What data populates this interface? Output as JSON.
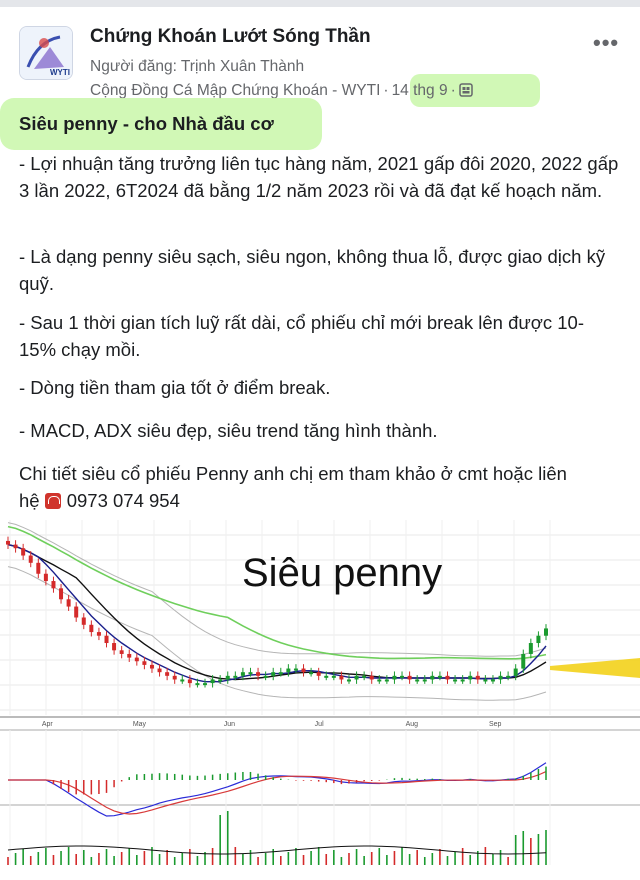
{
  "header": {
    "page_name": "Chứng Khoán Lướt Sóng Thần",
    "posted_by": "Người đăng: Trịnh Xuân Thành",
    "group": "Cộng Đồng Cá Mập Chứng Khoán - WYTI",
    "date": "14 thg 9",
    "separator": "·",
    "more_label": "•••",
    "avatar_text": "WYTI",
    "audience_icon": "group-icon"
  },
  "post": {
    "title": "Siêu penny - cho Nhà đầu cơ",
    "paragraphs": [
      "- Lợi nhuận tăng trưởng liên tục hàng năm, 2021 gấp đôi 2020, 2022 gấp 3 lần 2022, 6T2024 đã bằng 1/2 năm 2023 rồi và đã đạt kế hoạch năm.",
      "- Là dạng penny siêu sạch, siêu ngon, không thua lỗ, được giao dịch kỹ quỹ.",
      "- Sau 1 thời gian tích luỹ rất dài, cổ phiếu chỉ mới break lên được 10-15% chạy mồi.",
      "- Dòng tiền tham gia tốt ở điểm break.",
      "- MACD, ADX siêu đẹp, siêu trend tăng hình thành.",
      "Chi tiết siêu cổ phiếu Penny anh chị em tham khảo ở cmt hoặc liên"
    ],
    "contact_prefix": "hệ",
    "phone": "0973 074 954"
  },
  "chart_data": {
    "type": "candlestick",
    "title": "Siêu penny",
    "month_labels": [
      "Apr",
      "May",
      "Jun",
      "Jul",
      "Aug",
      "Sep"
    ],
    "close": [
      10.0,
      9.9,
      9.7,
      9.5,
      9.2,
      9.0,
      8.8,
      8.5,
      8.3,
      8.0,
      7.8,
      7.6,
      7.5,
      7.3,
      7.1,
      7.0,
      6.9,
      6.8,
      6.7,
      6.6,
      6.5,
      6.4,
      6.3,
      6.3,
      6.2,
      6.2,
      6.2,
      6.3,
      6.3,
      6.4,
      6.4,
      6.5,
      6.5,
      6.4,
      6.4,
      6.5,
      6.5,
      6.6,
      6.6,
      6.5,
      6.5,
      6.4,
      6.4,
      6.4,
      6.3,
      6.3,
      6.4,
      6.4,
      6.3,
      6.3,
      6.3,
      6.4,
      6.4,
      6.3,
      6.3,
      6.3,
      6.4,
      6.4,
      6.3,
      6.3,
      6.3,
      6.4,
      6.3,
      6.3,
      6.3,
      6.4,
      6.4,
      6.6,
      7.0,
      7.3,
      7.5,
      7.7
    ],
    "colors": {
      "up": "#1a9a2e",
      "down": "#d42a2a",
      "ma_short": "#1a1f8c",
      "ma_mid": "#111111",
      "ma_long": "#6fcf5c",
      "band": "#b5b5b5",
      "macd": "#2b2bd8",
      "signal": "#d83a3a"
    }
  }
}
